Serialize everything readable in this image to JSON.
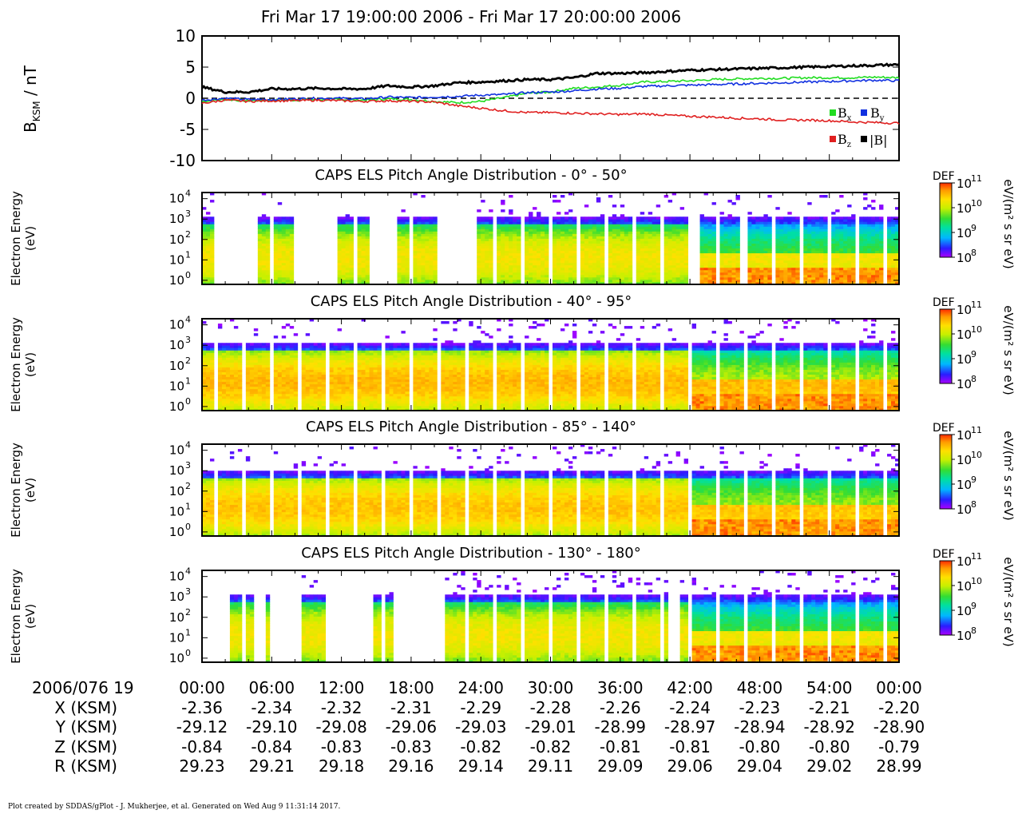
{
  "title": "Fri Mar 17 19:00:00 2006 - Fri Mar 17 20:00:00 2006",
  "footer": "Plot created by SDDAS/gPlot - J. Mukherjee, et al.  Generated on Wed Aug 9 11:31:14 2017.",
  "colors": {
    "bx": "#22dd22",
    "by": "#1030e0",
    "bz": "#e02020",
    "b_total": "#000000",
    "colormap": [
      "#aa00ff",
      "#2a1cff",
      "#00b7ff",
      "#00e0a0",
      "#33dd33",
      "#c8f000",
      "#ffe000",
      "#ff9a00",
      "#ff2a00"
    ]
  },
  "x_labels": {
    "header": "2006/076 19",
    "ticks": [
      "00:00",
      "06:00",
      "12:00",
      "18:00",
      "24:00",
      "30:00",
      "36:00",
      "42:00",
      "48:00",
      "54:00",
      "00:00"
    ]
  },
  "ephemeris": [
    {
      "name": "X (KSM)",
      "values": [
        "-2.36",
        "-2.34",
        "-2.32",
        "-2.31",
        "-2.29",
        "-2.28",
        "-2.26",
        "-2.24",
        "-2.23",
        "-2.21",
        "-2.20"
      ]
    },
    {
      "name": "Y (KSM)",
      "values": [
        "-29.12",
        "-29.10",
        "-29.08",
        "-29.06",
        "-29.03",
        "-29.01",
        "-28.99",
        "-28.97",
        "-28.94",
        "-28.92",
        "-28.90"
      ]
    },
    {
      "name": "Z (KSM)",
      "values": [
        "-0.84",
        "-0.84",
        "-0.83",
        "-0.83",
        "-0.82",
        "-0.82",
        "-0.81",
        "-0.81",
        "-0.80",
        "-0.80",
        "-0.79"
      ]
    },
    {
      "name": "R (KSM)",
      "values": [
        "29.23",
        "29.21",
        "29.18",
        "29.16",
        "29.14",
        "29.11",
        "29.09",
        "29.06",
        "29.04",
        "29.02",
        "28.99"
      ]
    }
  ],
  "chart_data": [
    {
      "type": "line",
      "ylabel": "B_KSM / nT",
      "ylim": [
        -10,
        10
      ],
      "yticks": [
        "10",
        "5",
        "0",
        "-5",
        "-10"
      ],
      "xlim_minutes": [
        0,
        60
      ],
      "zero_line": "dashed",
      "legend": [
        "Bx",
        "By",
        "Bz",
        "|B|"
      ],
      "legend_placement": "right",
      "x_minutes": [
        0,
        2,
        4,
        6,
        8,
        10,
        12,
        14,
        16,
        18,
        20,
        22,
        24,
        26,
        28,
        30,
        32,
        34,
        36,
        38,
        40,
        42,
        44,
        46,
        48,
        50,
        52,
        54,
        56,
        58,
        60
      ],
      "series": [
        {
          "name": "Bx",
          "values": [
            -0.5,
            -0.2,
            -0.4,
            -0.3,
            -0.3,
            -0.2,
            -0.2,
            -0.3,
            -0.1,
            -0.2,
            -0.5,
            -0.7,
            -0.5,
            0.1,
            0.8,
            1.0,
            1.6,
            1.8,
            2.1,
            2.6,
            2.7,
            2.8,
            3.0,
            3.1,
            3.2,
            3.2,
            3.3,
            3.3,
            3.3,
            3.4,
            3.3
          ]
        },
        {
          "name": "By",
          "values": [
            -0.3,
            0.0,
            -0.2,
            -0.2,
            -0.1,
            0.0,
            0.0,
            -0.1,
            0.2,
            0.1,
            0.2,
            0.3,
            0.5,
            0.6,
            0.9,
            1.0,
            1.2,
            1.5,
            1.6,
            1.9,
            2.0,
            2.1,
            2.2,
            2.3,
            2.4,
            2.5,
            2.6,
            2.7,
            2.8,
            2.9,
            2.8
          ]
        },
        {
          "name": "Bz",
          "values": [
            -0.8,
            -0.3,
            -0.5,
            -0.4,
            -0.4,
            -0.3,
            -0.4,
            -0.5,
            -0.4,
            -0.5,
            -0.6,
            -1.2,
            -1.6,
            -2.0,
            -2.3,
            -2.3,
            -2.4,
            -2.5,
            -2.6,
            -2.5,
            -2.7,
            -2.9,
            -3.0,
            -3.2,
            -3.3,
            -3.5,
            -3.5,
            -3.6,
            -3.8,
            -3.9,
            -4.0
          ]
        },
        {
          "name": "|B|",
          "values": [
            1.8,
            1.0,
            1.0,
            1.5,
            1.5,
            1.6,
            1.5,
            1.5,
            2.0,
            1.8,
            2.0,
            2.5,
            2.6,
            2.8,
            3.0,
            3.0,
            3.3,
            4.0,
            4.0,
            4.1,
            4.3,
            4.5,
            4.6,
            4.7,
            4.8,
            4.9,
            5.0,
            5.1,
            5.2,
            5.3,
            5.4
          ]
        }
      ]
    },
    {
      "type": "heatmap",
      "title": "CAPS ELS Pitch Angle Distribution - 0° - 50°",
      "ylabel": "Electron Energy (eV)",
      "ytick_exponents": [
        0,
        1,
        2,
        3,
        4
      ],
      "colorbar": {
        "label": "DEF",
        "units": "eV/(m² s sr eV)",
        "exponents": [
          8,
          9,
          10,
          11
        ]
      },
      "data_intervals_minutes": [
        [
          0,
          1.5
        ],
        [
          4.8,
          8.0
        ],
        [
          11.5,
          14.5
        ],
        [
          16.8,
          20.2
        ],
        [
          23.5,
          42.0
        ],
        [
          43.0,
          46.3
        ],
        [
          47.0,
          60.0
        ]
      ],
      "energy_peak_log": 1.1,
      "upper_cutoff_log": 2.8,
      "peak_level": 0.72,
      "enhanced_low_energy_after_minute": 42
    },
    {
      "type": "heatmap",
      "title": "CAPS ELS Pitch Angle Distribution - 40° - 95°",
      "ylabel": "Electron Energy (eV)",
      "ytick_exponents": [
        0,
        1,
        2,
        3,
        4
      ],
      "colorbar": {
        "label": "DEF",
        "units": "eV/(m² s sr eV)",
        "exponents": [
          8,
          9,
          10,
          11
        ]
      },
      "data_intervals_minutes": [
        [
          0,
          60
        ]
      ],
      "energy_peak_log": 1.2,
      "upper_cutoff_log": 2.8,
      "peak_level": 0.82,
      "enhanced_low_energy_after_minute": 42
    },
    {
      "type": "heatmap",
      "title": "CAPS ELS Pitch Angle Distribution - 85° - 140°",
      "ylabel": "Electron Energy (eV)",
      "ytick_exponents": [
        0,
        1,
        2,
        3,
        4
      ],
      "colorbar": {
        "label": "DEF",
        "units": "eV/(m² s sr eV)",
        "exponents": [
          8,
          9,
          10,
          11
        ]
      },
      "data_intervals_minutes": [
        [
          0,
          60
        ]
      ],
      "energy_peak_log": 1.2,
      "upper_cutoff_log": 2.7,
      "peak_level": 0.8,
      "enhanced_low_energy_after_minute": 42
    },
    {
      "type": "heatmap",
      "title": "CAPS ELS Pitch Angle Distribution - 130° - 180°",
      "ylabel": "Electron Energy (eV)",
      "ytick_exponents": [
        0,
        1,
        2,
        3,
        4
      ],
      "colorbar": {
        "label": "DEF",
        "units": "eV/(m² s sr eV)",
        "exponents": [
          8,
          9,
          10,
          11
        ]
      },
      "data_intervals_minutes": [
        [
          2.5,
          4.3
        ],
        [
          5.5,
          6.0
        ],
        [
          8.5,
          10.5
        ],
        [
          14.8,
          16.6
        ],
        [
          21.0,
          40.2
        ],
        [
          41.0,
          60.0
        ]
      ],
      "energy_peak_log": 1.1,
      "upper_cutoff_log": 2.8,
      "peak_level": 0.72,
      "enhanced_low_energy_after_minute": 42
    }
  ]
}
